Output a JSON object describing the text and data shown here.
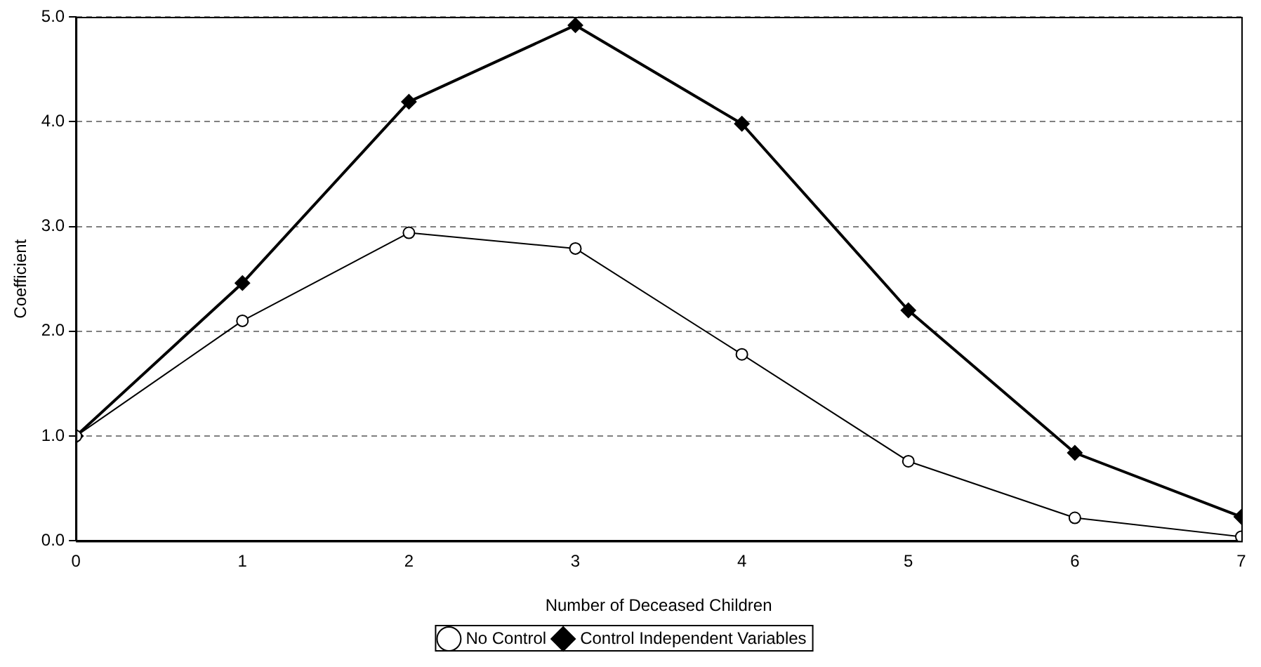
{
  "chart_data": {
    "type": "line",
    "xlabel": "Number of Deceased Children",
    "ylabel": "Coefficient",
    "x": [
      0,
      1,
      2,
      3,
      4,
      5,
      6,
      7
    ],
    "series": [
      {
        "name": "No Control",
        "color": "#000000",
        "marker": "circle",
        "values": [
          1.0,
          2.1,
          2.94,
          2.79,
          1.78,
          0.76,
          0.22,
          0.04
        ]
      },
      {
        "name": "Control Independent Variables",
        "color": "#000000",
        "marker": "diamond",
        "values": [
          1.0,
          2.46,
          4.19,
          4.92,
          3.98,
          2.2,
          0.84,
          0.23
        ]
      }
    ],
    "xlim": [
      0,
      7
    ],
    "xticks": [
      0,
      1,
      2,
      3,
      4,
      5,
      6,
      7
    ],
    "ylim": [
      0,
      5
    ],
    "yticks": [
      {
        "value": 0,
        "label": "0.0"
      },
      {
        "value": 1,
        "label": "1.0"
      },
      {
        "value": 2,
        "label": "2.0"
      },
      {
        "value": 3,
        "label": "3.0"
      },
      {
        "value": 4,
        "label": "4.0"
      },
      {
        "value": 5,
        "label": "5.0"
      }
    ],
    "grid": "y",
    "legend": "bottom"
  }
}
